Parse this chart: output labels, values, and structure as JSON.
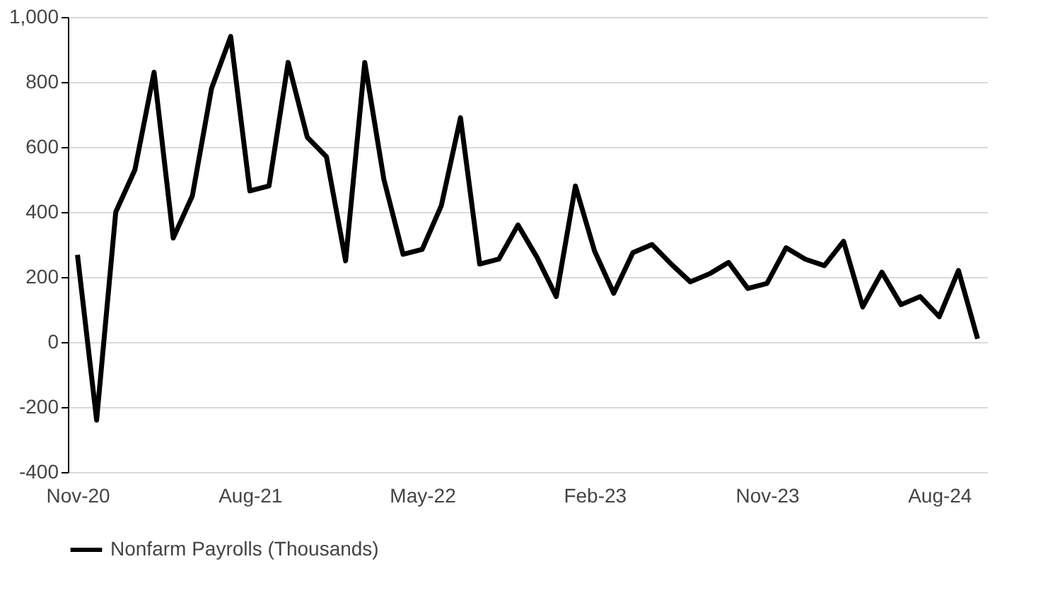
{
  "chart_data": {
    "type": "line",
    "categories": [
      "Nov-20",
      null,
      null,
      null,
      null,
      null,
      null,
      null,
      null,
      "Aug-21",
      null,
      null,
      null,
      null,
      null,
      null,
      null,
      null,
      "May-22",
      null,
      null,
      null,
      null,
      null,
      null,
      null,
      null,
      "Feb-23",
      null,
      null,
      null,
      null,
      null,
      null,
      null,
      null,
      "Nov-23",
      null,
      null,
      null,
      null,
      null,
      null,
      null,
      null,
      "Aug-24",
      null,
      null
    ],
    "series": [
      {
        "name": "Nonfarm Payrolls (Thousands)",
        "color": "#000000",
        "values": [
          268,
          -240,
          400,
          530,
          830,
          320,
          450,
          780,
          940,
          465,
          480,
          860,
          630,
          570,
          250,
          860,
          500,
          270,
          285,
          420,
          690,
          240,
          255,
          360,
          260,
          140,
          480,
          280,
          150,
          275,
          300,
          240,
          185,
          210,
          245,
          165,
          180,
          290,
          255,
          235,
          310,
          108,
          215,
          115,
          140,
          78,
          220,
          10
        ]
      }
    ],
    "ylim": [
      -400,
      1000
    ],
    "yticks": [
      -400,
      -200,
      0,
      200,
      400,
      600,
      800,
      {
        "value": 1000,
        "label": "1,000"
      }
    ],
    "grid": "y",
    "legend": "bottom",
    "marker": "none",
    "line_style": "solid"
  }
}
